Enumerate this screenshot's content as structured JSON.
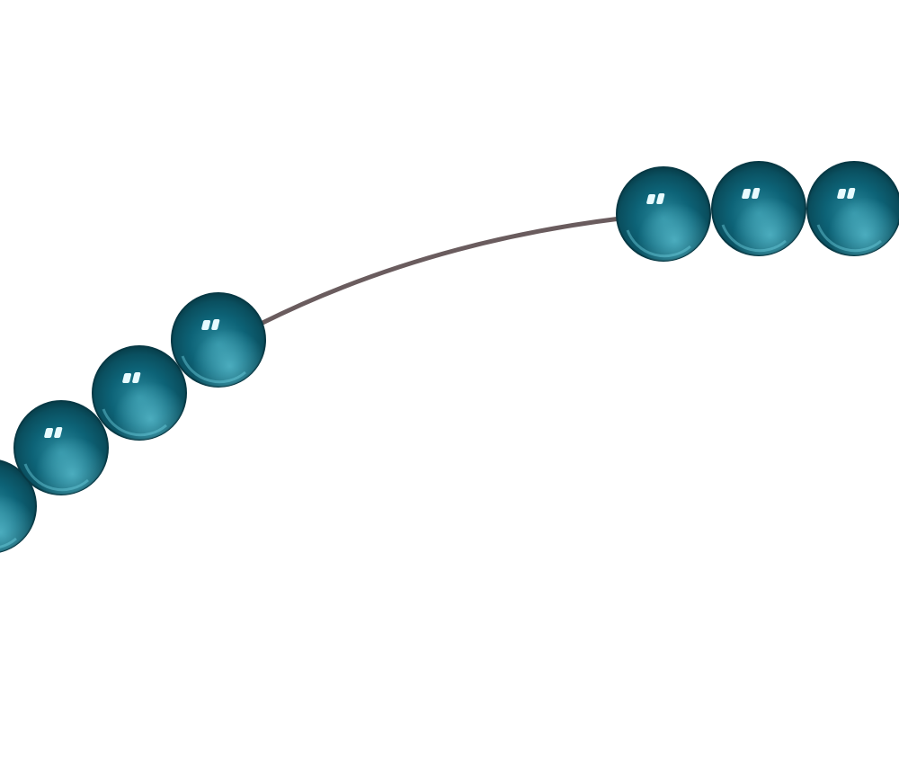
{
  "scene": {
    "background_color": "#ffffff",
    "string_color": "#6a5c5e",
    "bead_color": "#0d5f70",
    "bead_highlight_color": "#7fd7e6",
    "bead_count": 7
  }
}
